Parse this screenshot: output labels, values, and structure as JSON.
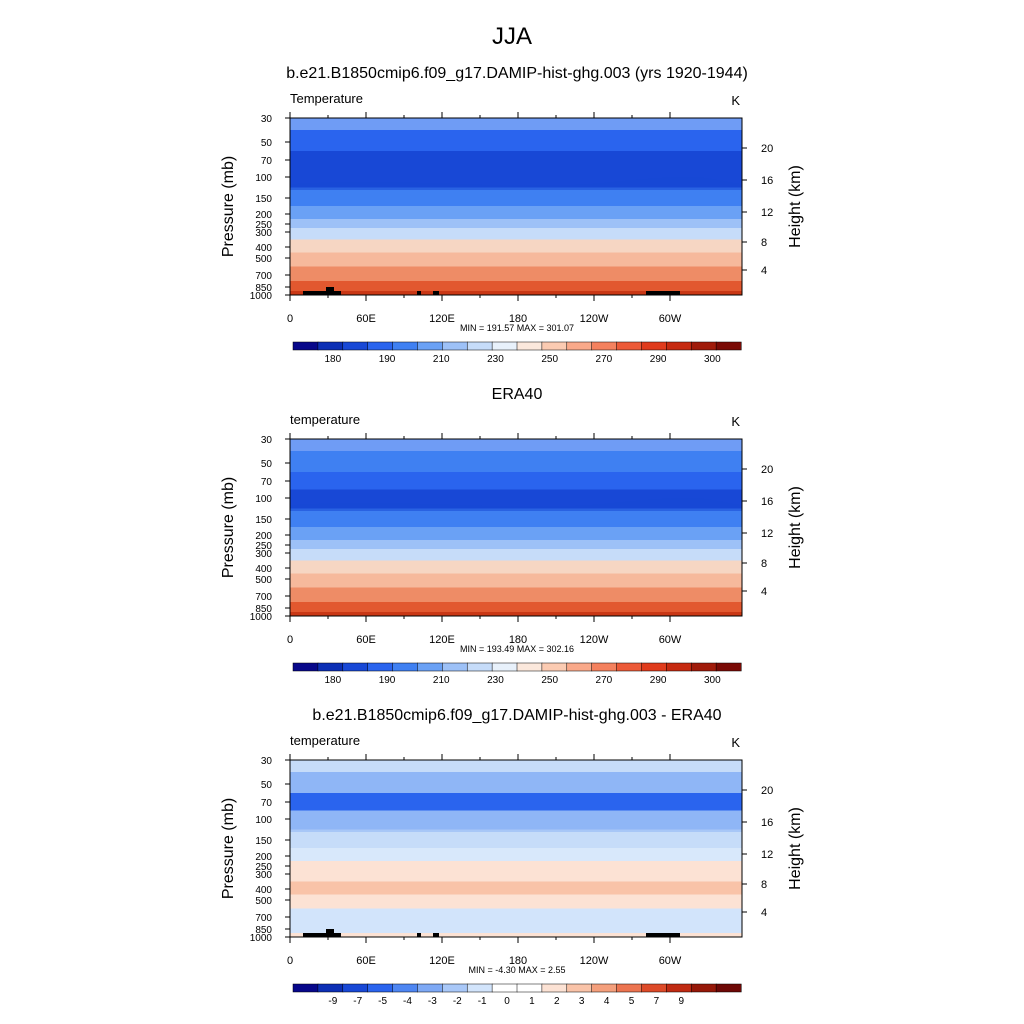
{
  "figure": {
    "title": "JJA"
  },
  "colors": {
    "abs_fills": [
      "#08088a",
      "#0c2fb5",
      "#1848d6",
      "#2a64ee",
      "#3f80f2",
      "#6aa1f5",
      "#9dc1f7",
      "#c6dcf9",
      "#e8f1fb",
      "#fbe8dc",
      "#fbcbb2",
      "#f9a98a",
      "#f4815e",
      "#ec5a38",
      "#e03b1c",
      "#c62a10",
      "#a01b0a",
      "#7a0a05"
    ],
    "diff_fills": [
      "#07078a",
      "#0c2fb5",
      "#1848d6",
      "#2a64ee",
      "#4e86f2",
      "#7ea9f5",
      "#a9c8f8",
      "#d2e4fb",
      "#ffffff",
      "#ffffff",
      "#fce2d4",
      "#f9c3a8",
      "#f49f7c",
      "#ec7450",
      "#dd4a28",
      "#c02a12",
      "#961808",
      "#6e0806"
    ]
  },
  "panels": [
    {
      "title": "b.e21.B1850cmip6.f09_g17.DAMIP-hist-ghg.003 (yrs 1920-1944)",
      "left_label": "Temperature",
      "right_label": "K",
      "y_axis_title": "Pressure (mb)",
      "y2_axis_title": "Height (km)",
      "pressure_ticks": [
        "30",
        "50",
        "70",
        "100",
        "150",
        "200",
        "250",
        "300",
        "400",
        "500",
        "700",
        "850",
        "1000"
      ],
      "height_ticks": [
        "20",
        "16",
        "12",
        "8",
        "4"
      ],
      "lon_ticks": [
        "0",
        "60E",
        "120E",
        "180",
        "120W",
        "60W"
      ],
      "stats": "MIN = 191.57  MAX = 301.07",
      "colorbar_labels": [
        "180",
        "190",
        "210",
        "230",
        "250",
        "270",
        "290",
        "300"
      ]
    },
    {
      "title": "ERA40",
      "left_label": "temperature",
      "right_label": "K",
      "y_axis_title": "Pressure (mb)",
      "y2_axis_title": "Height (km)",
      "pressure_ticks": [
        "30",
        "50",
        "70",
        "100",
        "150",
        "200",
        "250",
        "300",
        "400",
        "500",
        "700",
        "850",
        "1000"
      ],
      "height_ticks": [
        "20",
        "16",
        "12",
        "8",
        "4"
      ],
      "lon_ticks": [
        "0",
        "60E",
        "120E",
        "180",
        "120W",
        "60W"
      ],
      "stats": "MIN = 193.49  MAX = 302.16",
      "colorbar_labels": [
        "180",
        "190",
        "210",
        "230",
        "250",
        "270",
        "290",
        "300"
      ]
    },
    {
      "title": "b.e21.B1850cmip6.f09_g17.DAMIP-hist-ghg.003 - ERA40",
      "left_label": "temperature",
      "right_label": "K",
      "y_axis_title": "Pressure (mb)",
      "y2_axis_title": "Height (km)",
      "pressure_ticks": [
        "30",
        "50",
        "70",
        "100",
        "150",
        "200",
        "250",
        "300",
        "400",
        "500",
        "700",
        "850",
        "1000"
      ],
      "height_ticks": [
        "20",
        "16",
        "12",
        "8",
        "4"
      ],
      "lon_ticks": [
        "0",
        "60E",
        "120E",
        "180",
        "120W",
        "60W"
      ],
      "stats": "MIN = -4.30  MAX =  2.55",
      "colorbar_labels": [
        "-9",
        "-7",
        "-5",
        "-4",
        "-3",
        "-2",
        "-1",
        "0",
        "1",
        "2",
        "3",
        "4",
        "5",
        "7",
        "9"
      ]
    }
  ],
  "chart_data": [
    {
      "type": "heatmap",
      "title": "b.e21.B1850cmip6.f09_g17.DAMIP-hist-ghg.003 (yrs 1920-1944)",
      "xlabel": "",
      "ylabel": "Pressure (mb)",
      "y2label": "Height (km)",
      "x_ticks": [
        "0",
        "60E",
        "120E",
        "180",
        "120W",
        "60W"
      ],
      "y_scale": "log-pressure",
      "ylim": [
        1000,
        30
      ],
      "units": "K",
      "min": 191.57,
      "max": 301.07,
      "pressure_levels": [
        30,
        50,
        70,
        100,
        150,
        200,
        250,
        300,
        400,
        500,
        700,
        850,
        1000
      ],
      "zonal_profile_K": [
        213,
        204,
        196,
        194,
        200,
        210,
        219,
        228,
        243,
        253,
        268,
        276,
        284
      ],
      "contour_levels": [
        180,
        185,
        190,
        195,
        200,
        205,
        210,
        220,
        230,
        240,
        250,
        260,
        270,
        280,
        285,
        290,
        295,
        300
      ]
    },
    {
      "type": "heatmap",
      "title": "ERA40",
      "xlabel": "",
      "ylabel": "Pressure (mb)",
      "y2label": "Height (km)",
      "x_ticks": [
        "0",
        "60E",
        "120E",
        "180",
        "120W",
        "60W"
      ],
      "y_scale": "log-pressure",
      "ylim": [
        1000,
        30
      ],
      "units": "K",
      "min": 193.49,
      "max": 302.16,
      "pressure_levels": [
        30,
        50,
        70,
        100,
        150,
        200,
        250,
        300,
        400,
        500,
        700,
        850,
        1000
      ],
      "zonal_profile_K": [
        213,
        205,
        199,
        196,
        203,
        211,
        220,
        228,
        244,
        254,
        268,
        277,
        285
      ],
      "contour_levels": [
        180,
        185,
        190,
        195,
        200,
        205,
        210,
        220,
        230,
        240,
        250,
        260,
        270,
        280,
        285,
        290,
        295,
        300
      ]
    },
    {
      "type": "heatmap",
      "title": "b.e21.B1850cmip6.f09_g17.DAMIP-hist-ghg.003 - ERA40",
      "xlabel": "",
      "ylabel": "Pressure (mb)",
      "y2label": "Height (km)",
      "x_ticks": [
        "0",
        "60E",
        "120E",
        "180",
        "120W",
        "60W"
      ],
      "y_scale": "log-pressure",
      "ylim": [
        1000,
        30
      ],
      "units": "K",
      "min": -4.3,
      "max": 2.55,
      "pressure_levels": [
        30,
        50,
        70,
        100,
        150,
        200,
        250,
        300,
        400,
        500,
        700,
        850,
        1000
      ],
      "zonal_profile_K": [
        -1,
        -2,
        -4,
        -3,
        -2,
        -0.5,
        0.5,
        0.5,
        1.5,
        1.5,
        0.5,
        -0.5,
        -0.5
      ],
      "contour_levels": [
        -9,
        -8,
        -7,
        -6,
        -5,
        -4,
        -3,
        -2,
        -1,
        0,
        1,
        2,
        3,
        4,
        5,
        6,
        7,
        8,
        9
      ]
    }
  ]
}
